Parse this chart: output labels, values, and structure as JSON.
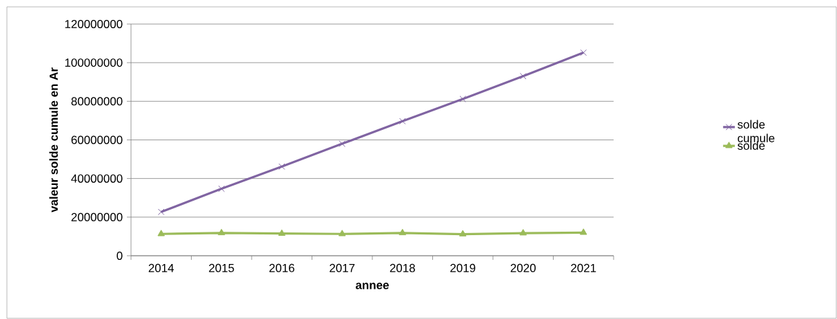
{
  "chart_data": {
    "type": "line",
    "xlabel": "annee",
    "ylabel": "valeur solde cumule en Ar",
    "categories": [
      "2014",
      "2015",
      "2016",
      "2017",
      "2018",
      "2019",
      "2020",
      "2021"
    ],
    "series": [
      {
        "name": "solde cumule",
        "color": "#8064a2",
        "marker": "cross",
        "values": [
          22700000,
          34700000,
          46200000,
          58000000,
          69700000,
          81200000,
          93000000,
          105200000
        ]
      },
      {
        "name": "solde",
        "color": "#9bbb59",
        "marker": "triangle",
        "values": [
          11300000,
          11800000,
          11500000,
          11300000,
          11800000,
          11200000,
          11700000,
          12000000
        ]
      }
    ],
    "ylim": [
      0,
      120000000
    ],
    "yticks": [
      0,
      20000000,
      40000000,
      60000000,
      80000000,
      100000000,
      120000000
    ],
    "grid": "y",
    "legend": "right"
  }
}
